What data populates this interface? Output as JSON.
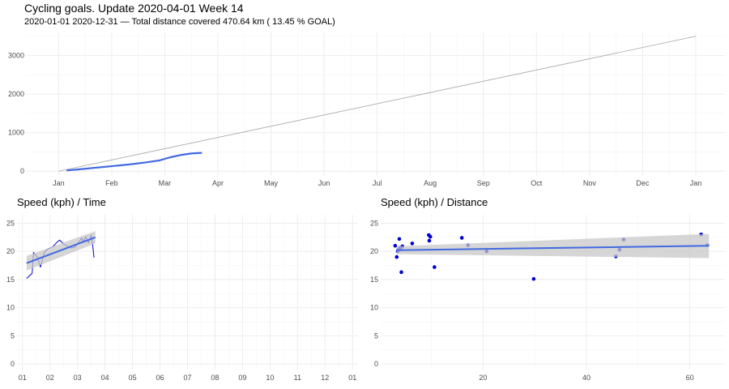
{
  "header": {
    "title": "Cycling goals. Update 2020-04-01 Week 14",
    "subtitle": "2020-01-01 2020-12-31 — Total distance covered 470.64 km ( 13.45 % GOAL)"
  },
  "colors": {
    "actual": "#4169e1",
    "goal": "#a6a6a6",
    "points": "#0000cd",
    "band": "#c8c8c8"
  },
  "chart_data": [
    {
      "type": "line",
      "title": "",
      "xlabel": "",
      "ylabel": "",
      "x_ticks": [
        "Jan",
        "Feb",
        "Mar",
        "Apr",
        "May",
        "Jun",
        "Jul",
        "Aug",
        "Sep",
        "Oct",
        "Nov",
        "Dec",
        "Jan"
      ],
      "y_ticks": [
        0,
        1000,
        2000,
        3000
      ],
      "xlim": [
        -0.6,
        12.55
      ],
      "ylim": [
        -100,
        3600
      ],
      "grid": true,
      "series": [
        {
          "role": "goal",
          "x": [
            0,
            12
          ],
          "y": [
            0,
            3500
          ]
        },
        {
          "role": "actual",
          "x": [
            0.15,
            0.4,
            0.7,
            1.0,
            1.3,
            1.6,
            1.9,
            2.1,
            2.3,
            2.5,
            2.7
          ],
          "y": [
            20,
            50,
            90,
            130,
            170,
            220,
            280,
            360,
            420,
            460,
            475
          ]
        }
      ]
    },
    {
      "type": "line",
      "title": "Speed (kph) / Time",
      "xlabel": "",
      "ylabel": "",
      "x_ticks": [
        "01",
        "02",
        "03",
        "04",
        "05",
        "06",
        "07",
        "08",
        "09",
        "10",
        "11",
        "12",
        "01"
      ],
      "y_ticks": [
        0,
        5,
        10,
        15,
        20,
        25
      ],
      "xlim": [
        -0.2,
        12.2
      ],
      "ylim": [
        -1,
        26.5
      ],
      "grid": true,
      "series": [
        {
          "role": "speed",
          "x": [
            0.15,
            0.35,
            0.4,
            0.55,
            0.65,
            0.8,
            0.95,
            1.1,
            1.25,
            1.35,
            1.5,
            1.6,
            1.75,
            1.9,
            2.0,
            2.1,
            2.15,
            2.2,
            2.3,
            2.4,
            2.5,
            2.55,
            2.6
          ],
          "y": [
            15.2,
            16.1,
            19.8,
            18.9,
            17.2,
            19.9,
            20.5,
            20.8,
            21.6,
            22.0,
            21.3,
            21.0,
            20.6,
            20.7,
            21.4,
            22.0,
            22.4,
            21.7,
            22.6,
            21.5,
            22.9,
            21.2,
            18.9
          ]
        },
        {
          "role": "trend",
          "x": [
            0.15,
            2.65
          ],
          "y": [
            17.9,
            22.5
          ],
          "band_lower": [
            16.6,
            21.4
          ],
          "band_upper": [
            19.2,
            23.6
          ]
        }
      ]
    },
    {
      "type": "scatter",
      "title": "Speed (kph) / Distance",
      "xlabel": "",
      "ylabel": "",
      "x_ticks": [
        20,
        40,
        60
      ],
      "y_ticks": [
        0,
        5,
        10,
        15,
        20,
        25
      ],
      "xlim": [
        0.2,
        66.8
      ],
      "ylim": [
        -1,
        26.5
      ],
      "grid": true,
      "series": [
        {
          "role": "points",
          "x": [
            3,
            3.3,
            3.5,
            3.8,
            4.1,
            4.4,
            3.6,
            4.2,
            3.9,
            6.3,
            9.5,
            9.6,
            9.8,
            10.6,
            15.9,
            17.1,
            20.7,
            29.8,
            45.7,
            46.4,
            47.2,
            62.2,
            63.4
          ],
          "y": [
            21.0,
            19.0,
            20.0,
            22.2,
            20.6,
            20.9,
            20.3,
            16.3,
            20.6,
            21.4,
            22.9,
            21.9,
            22.6,
            17.2,
            22.4,
            21.1,
            20.0,
            15.1,
            19.1,
            20.3,
            22.1,
            23.0,
            21.1
          ]
        },
        {
          "role": "trend",
          "x": [
            3.3,
            63.7
          ],
          "y": [
            20.2,
            21.0
          ],
          "band_lower": [
            19.5,
            18.8
          ],
          "band_upper": [
            20.9,
            23.1
          ]
        }
      ]
    }
  ]
}
